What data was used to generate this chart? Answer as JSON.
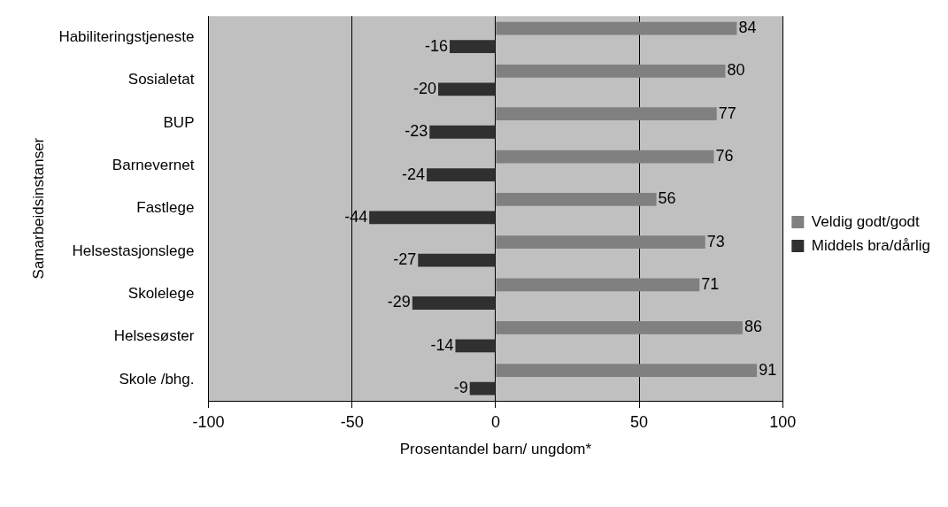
{
  "chart_data": {
    "type": "bar",
    "orientation": "horizontal",
    "xlabel": "Prosentandel barn/ ungdom*",
    "ylabel": "Samarbeidsinstanser",
    "categories": [
      "Habiliteringstjeneste",
      "Sosialetat",
      "BUP",
      "Barnevernet",
      "Fastlege",
      "Helsestasjonslege",
      "Skolelege",
      "Helsesøster",
      "Skole /bhg."
    ],
    "series": [
      {
        "name": "Veldig godt/godt",
        "color": "#808080",
        "values": [
          84,
          80,
          77,
          76,
          56,
          73,
          71,
          86,
          91
        ]
      },
      {
        "name": "Middels bra/dårlig",
        "color": "#303030",
        "values": [
          -16,
          -20,
          -23,
          -24,
          -44,
          -27,
          -29,
          -14,
          -9
        ]
      }
    ],
    "xlim": [
      -100,
      100
    ],
    "xticks": [
      -100,
      -50,
      0,
      50,
      100
    ],
    "grid": "x",
    "legend": "right",
    "data_labels": true
  }
}
